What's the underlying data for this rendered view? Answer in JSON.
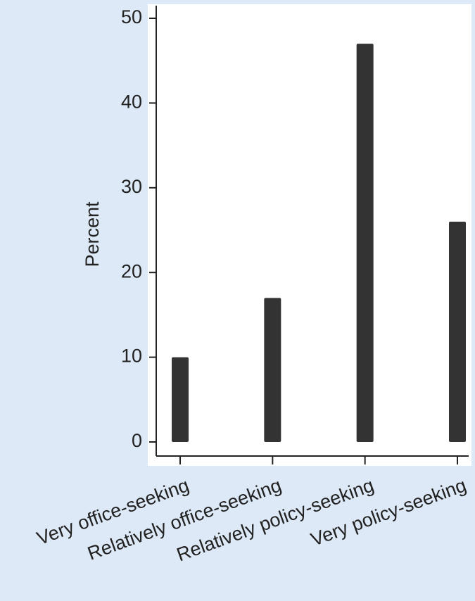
{
  "chart_data": {
    "type": "bar",
    "y_label": "Percent",
    "categories": [
      "Very office-seeking",
      "Relatively office-seeking",
      "Relatively policy-seeking",
      "Very policy-seeking"
    ],
    "values": [
      10,
      17,
      47,
      26
    ],
    "color": "#333333",
    "ylim": [
      0,
      50
    ],
    "yticks": [
      0,
      10,
      20,
      30,
      40,
      50
    ]
  }
}
